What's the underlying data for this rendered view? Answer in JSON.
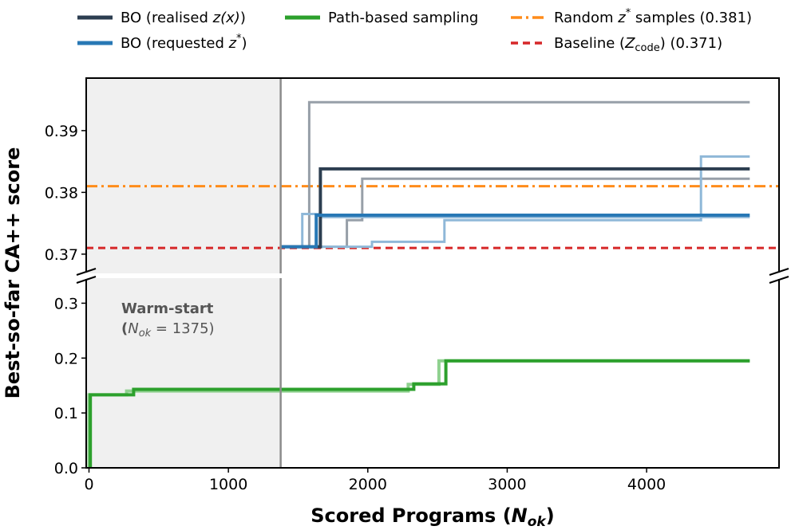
{
  "chart_data": {
    "type": "line",
    "ylabel": "Best-so-far CA++ score",
    "xlabel": {
      "main": "Scored Programs (",
      "var": "N",
      "sub": "ok",
      "close": ")"
    },
    "xlim": [
      -20,
      4950
    ],
    "xticks": [
      0,
      1000,
      2000,
      3000,
      4000
    ],
    "x_tick_labels": [
      "0",
      "1000",
      "2000",
      "3000",
      "4000"
    ],
    "upper_panel": {
      "ylim": [
        0.3665,
        0.3985
      ],
      "yticks": [
        0.37,
        0.38,
        0.39
      ],
      "y_tick_labels": [
        "0.37",
        "0.38",
        "0.39"
      ]
    },
    "lower_panel": {
      "ylim": [
        0.0,
        0.35
      ],
      "yticks": [
        0.0,
        0.1,
        0.2,
        0.3
      ],
      "y_tick_labels": [
        "0.0",
        "0.1",
        "0.2",
        "0.3"
      ]
    },
    "warm_start": {
      "x_end": 1375,
      "label": "Warm-start",
      "sublabel_prefix": "(",
      "var": "N",
      "sub": "ok",
      "sublabel_value": " = 1375)"
    },
    "legend": [
      {
        "key": "bo_realised",
        "label_pre": "BO (realised ",
        "label_var": "z(x)",
        "label_post": ")",
        "color": "#2c3e50",
        "style": "solid"
      },
      {
        "key": "bo_requested",
        "label_pre": "BO (requested ",
        "label_var": "z",
        "label_sup": "*",
        "label_post": ")",
        "color": "#2878b5",
        "style": "solid"
      },
      {
        "key": "path",
        "label_pre": "Path-based sampling",
        "color": "#2ca02c",
        "style": "solid"
      },
      {
        "key": "random",
        "label_pre": "Random ",
        "label_var": "z",
        "label_sup": "*",
        "label_post": " samples (0.381)",
        "color": "#ff8c1a",
        "style": "dashdot"
      },
      {
        "key": "baseline",
        "label_pre": "Baseline (",
        "label_var": "Z",
        "label_sub": "code",
        "label_post": ") (0.371)",
        "color": "#d62728",
        "style": "dashed"
      }
    ],
    "reference_lines": [
      {
        "name": "Random z* samples",
        "y": 0.381,
        "color": "#ff8c1a",
        "style": "dashdot"
      },
      {
        "name": "Baseline (Z_code)",
        "y": 0.371,
        "color": "#d62728",
        "style": "dashed"
      }
    ],
    "series": [
      {
        "name": "BO realised run (faint)",
        "panel": "upper",
        "color": "#8c959f",
        "opacity": 0.9,
        "width": 3,
        "x": [
          1375,
          1580,
          1580,
          1950,
          1950,
          4740
        ],
        "y": [
          0.3712,
          0.3712,
          0.3946,
          0.3946,
          0.3946,
          0.3946
        ]
      },
      {
        "name": "BO realised run 2 (faint)",
        "panel": "upper",
        "color": "#8c959f",
        "opacity": 0.9,
        "width": 3,
        "x": [
          1375,
          1850,
          1850,
          1960,
          1960,
          4740
        ],
        "y": [
          0.3712,
          0.3712,
          0.3755,
          0.3755,
          0.3822,
          0.3822
        ]
      },
      {
        "name": "BO requested run (faint)",
        "panel": "upper",
        "color": "#8fb8d8",
        "opacity": 1,
        "width": 3,
        "x": [
          1375,
          1530,
          1530,
          1660,
          1660,
          4740
        ],
        "y": [
          0.3712,
          0.3712,
          0.3765,
          0.3765,
          0.376,
          0.376
        ]
      },
      {
        "name": "BO requested run 2 (faint)",
        "panel": "upper",
        "color": "#8fb8d8",
        "opacity": 1,
        "width": 3,
        "x": [
          1375,
          2030,
          2030,
          2550,
          2550,
          4390,
          4390,
          4740
        ],
        "y": [
          0.3712,
          0.3712,
          0.372,
          0.372,
          0.3755,
          0.3755,
          0.3858,
          0.3858
        ]
      },
      {
        "name": "BO (realised z(x))",
        "panel": "upper",
        "color": "#2c3e50",
        "opacity": 1,
        "width": 4,
        "x": [
          1375,
          1660,
          1660,
          4740
        ],
        "y": [
          0.3712,
          0.3712,
          0.3838,
          0.3838
        ]
      },
      {
        "name": "BO (requested z*)",
        "panel": "upper",
        "color": "#2878b5",
        "opacity": 1,
        "width": 4,
        "x": [
          1375,
          1630,
          1630,
          4740
        ],
        "y": [
          0.3712,
          0.3712,
          0.3763,
          0.3763
        ]
      },
      {
        "name": "Path-based sampling (faint)",
        "panel": "lower",
        "color": "#8fd18f",
        "opacity": 1,
        "width": 4,
        "x": [
          0,
          0,
          270,
          270,
          2290,
          2290,
          2510,
          2510,
          4740
        ],
        "y": [
          0.0,
          0.133,
          0.133,
          0.14,
          0.14,
          0.152,
          0.152,
          0.195,
          0.195
        ]
      },
      {
        "name": "Path-based sampling",
        "panel": "lower",
        "color": "#2ca02c",
        "opacity": 1,
        "width": 4,
        "x": [
          0,
          0,
          10,
          10,
          210,
          210,
          320,
          320,
          2330,
          2330,
          2560,
          2560,
          4740
        ],
        "y": [
          0.0,
          0.0,
          0.0,
          0.133,
          0.133,
          0.133,
          0.133,
          0.143,
          0.143,
          0.153,
          0.153,
          0.195,
          0.195
        ]
      }
    ]
  }
}
